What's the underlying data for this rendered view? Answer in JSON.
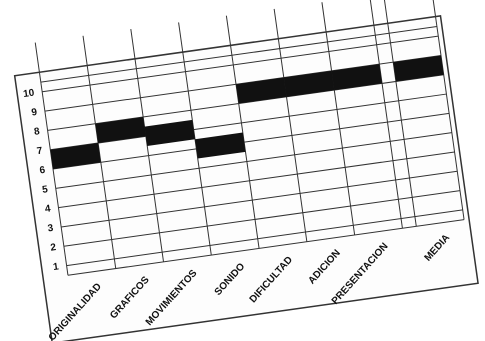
{
  "chart_data": {
    "type": "rating",
    "categories": [
      "ORIGINALIDAD",
      "GRAFICOS",
      "MOVIMIENTOS",
      "SONIDO",
      "DIFICULTAD",
      "ADICION",
      "PRESENTACION",
      "MEDIA"
    ],
    "values": [
      6.5,
      7.5,
      7,
      6,
      8.5,
      8.5,
      8.5,
      8.5
    ],
    "color": "#111111",
    "ylim": [
      0.5,
      10.5
    ],
    "yticks": [
      1,
      2,
      3,
      4,
      5,
      6,
      7,
      8,
      9,
      10
    ],
    "grid": true
  }
}
